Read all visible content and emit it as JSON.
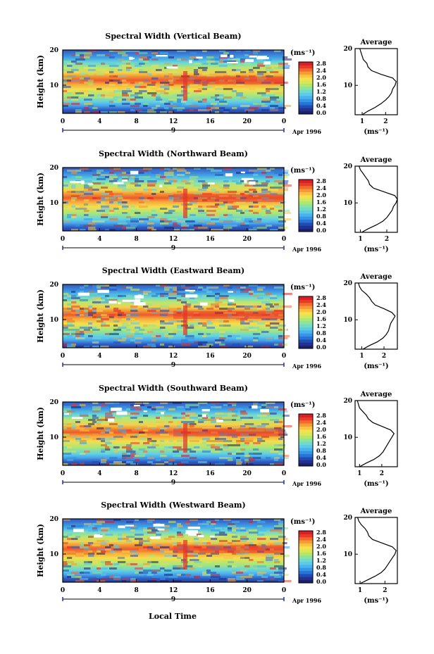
{
  "figure": {
    "xlabel": "Local Time",
    "date_label": "Apr 1996",
    "day_marker": "9",
    "colorbar_unit": "(ms⁻¹)",
    "profile_title": "Average",
    "profile_xlabel": "(ms⁻¹)",
    "ylabel": "Height (km)"
  },
  "colorbar": {
    "ticks": [
      "0.0",
      "0.4",
      "0.8",
      "1.2",
      "1.6",
      "2.0",
      "2.4",
      "2.8"
    ],
    "colors": [
      "#1c1f6b",
      "#24308f",
      "#1f4db5",
      "#2a73d6",
      "#3596e8",
      "#49b3f0",
      "#5ecbe6",
      "#6fdcc8",
      "#8ae39e",
      "#b0e86f",
      "#d6e85a",
      "#f5e04e",
      "#fbc341",
      "#f79a35",
      "#f26a2c",
      "#e83a27",
      "#d81e26"
    ]
  },
  "chart_data": [
    {
      "type": "heatmap",
      "title": "Spectral Width (Vertical Beam)",
      "xlabel": "Local Time",
      "ylabel": "Height (km)",
      "x_ticks": [
        "0",
        "4",
        "8",
        "12",
        "16",
        "20",
        "0"
      ],
      "xlim": [
        0,
        24
      ],
      "y_ticks": [
        "10",
        "20"
      ],
      "ylim": [
        2,
        20
      ],
      "colorbar_ylim": [
        0.0,
        2.8
      ],
      "profile": {
        "title": "Average",
        "xlabel": "(ms⁻¹)",
        "x_ticks": [
          "1",
          "2"
        ],
        "xlim": [
          0.7,
          2.5
        ],
        "heights": [
          2,
          3,
          4,
          5,
          6,
          7,
          8,
          9,
          10,
          11,
          12,
          13,
          14,
          15,
          16,
          17,
          18,
          19,
          20
        ],
        "values": [
          1.0,
          1.25,
          1.55,
          1.8,
          2.0,
          2.15,
          2.25,
          2.3,
          2.4,
          2.45,
          2.3,
          1.8,
          1.4,
          1.25,
          1.2,
          1.05,
          1.0,
          0.95,
          0.9
        ]
      }
    },
    {
      "type": "heatmap",
      "title": "Spectral Width (Northward Beam)",
      "xlabel": "Local Time",
      "ylabel": "Height (km)",
      "x_ticks": [
        "0",
        "4",
        "8",
        "12",
        "16",
        "20",
        "0"
      ],
      "xlim": [
        0,
        24
      ],
      "y_ticks": [
        "10",
        "20"
      ],
      "ylim": [
        2,
        20
      ],
      "colorbar_ylim": [
        0.0,
        2.8
      ],
      "profile": {
        "title": "Average",
        "xlabel": "(ms⁻¹)",
        "x_ticks": [
          "1",
          "2"
        ],
        "xlim": [
          0.8,
          2.4
        ],
        "heights": [
          2,
          3,
          4,
          5,
          6,
          7,
          8,
          9,
          10,
          11,
          12,
          13,
          14,
          15,
          16,
          17,
          18,
          19,
          20
        ],
        "values": [
          1.05,
          1.3,
          1.6,
          1.85,
          2.0,
          2.1,
          2.2,
          2.25,
          2.35,
          2.4,
          2.3,
          1.9,
          1.5,
          1.35,
          1.3,
          1.2,
          1.1,
          1.0,
          0.95
        ]
      }
    },
    {
      "type": "heatmap",
      "title": "Spectral Width (Eastward Beam)",
      "xlabel": "Local Time",
      "ylabel": "Height (km)",
      "x_ticks": [
        "0",
        "4",
        "8",
        "12",
        "16",
        "20",
        "0"
      ],
      "xlim": [
        0,
        24
      ],
      "y_ticks": [
        "10",
        "20"
      ],
      "ylim": [
        2,
        20
      ],
      "colorbar_ylim": [
        0.0,
        2.8
      ],
      "profile": {
        "title": "Average",
        "xlabel": "(ms⁻¹)",
        "x_ticks": [
          "1",
          "2"
        ],
        "xlim": [
          0.7,
          2.6
        ],
        "heights": [
          2,
          3,
          4,
          5,
          6,
          7,
          8,
          9,
          10,
          11,
          12,
          13,
          14,
          15,
          16,
          17,
          18,
          19,
          20
        ],
        "values": [
          1.05,
          1.35,
          1.7,
          1.95,
          2.1,
          2.2,
          2.25,
          2.3,
          2.4,
          2.5,
          2.35,
          2.0,
          1.6,
          1.45,
          1.35,
          1.2,
          1.0,
          0.9,
          0.85
        ]
      }
    },
    {
      "type": "heatmap",
      "title": "Spectral Width (Southward Beam)",
      "xlabel": "Local Time",
      "ylabel": "Height (km)",
      "x_ticks": [
        "0",
        "4",
        "8",
        "12",
        "16",
        "20",
        "0"
      ],
      "xlim": [
        0,
        24
      ],
      "y_ticks": [
        "10",
        "20"
      ],
      "ylim": [
        2,
        20
      ],
      "colorbar_ylim": [
        0.0,
        2.8
      ],
      "profile": {
        "title": "Average",
        "xlabel": "(ms⁻¹)",
        "x_ticks": [
          "1",
          "2"
        ],
        "xlim": [
          0.8,
          2.7
        ],
        "heights": [
          2,
          3,
          4,
          5,
          6,
          7,
          8,
          9,
          10,
          11,
          12,
          13,
          14,
          15,
          16,
          17,
          18,
          19,
          20
        ],
        "values": [
          1.0,
          1.3,
          1.65,
          1.9,
          2.05,
          2.15,
          2.25,
          2.35,
          2.45,
          2.55,
          2.4,
          2.0,
          1.6,
          1.4,
          1.3,
          1.15,
          1.0,
          0.95,
          0.9
        ]
      }
    },
    {
      "type": "heatmap",
      "title": "Spectral Width (Westward Beam)",
      "xlabel": "Local Time",
      "ylabel": "Height (km)",
      "x_ticks": [
        "0",
        "4",
        "8",
        "12",
        "16",
        "20",
        "0"
      ],
      "xlim": [
        0,
        24
      ],
      "y_ticks": [
        "10",
        "20"
      ],
      "ylim": [
        2,
        20
      ],
      "colorbar_ylim": [
        0.0,
        2.8
      ],
      "profile": {
        "title": "Average",
        "xlabel": "(ms⁻¹)",
        "x_ticks": [
          "1",
          "2"
        ],
        "xlim": [
          0.8,
          2.5
        ],
        "heights": [
          2,
          3,
          4,
          5,
          6,
          7,
          8,
          9,
          10,
          11,
          12,
          13,
          14,
          15,
          16,
          17,
          18,
          19,
          20
        ],
        "values": [
          1.0,
          1.3,
          1.6,
          1.85,
          2.0,
          2.1,
          2.2,
          2.3,
          2.4,
          2.45,
          2.3,
          1.9,
          1.5,
          1.35,
          1.3,
          1.2,
          1.05,
          0.95,
          0.9
        ]
      }
    }
  ]
}
